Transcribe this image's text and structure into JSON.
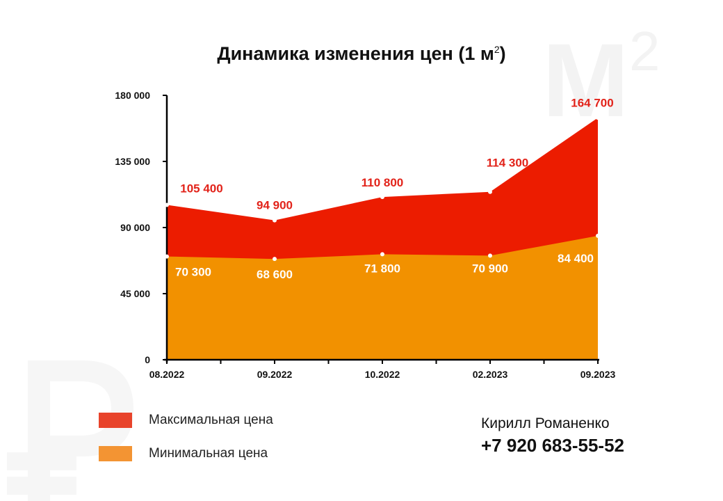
{
  "title": {
    "text": "Динамика изменения цен (1 м",
    "sup": "2"
  },
  "watermarks": {
    "m_letter": "М",
    "m_sup": "2",
    "ruble": "₽"
  },
  "legend": [
    {
      "label": "Максимальная цена",
      "color": "#e8432b"
    },
    {
      "label": "Минимальная цена",
      "color": "#f39433"
    }
  ],
  "contact": {
    "name": "Кирилл Романенко",
    "phone": "+7 920 683-55-52"
  },
  "chart_data": {
    "type": "area",
    "categories": [
      "08.2022",
      "09.2022",
      "10.2022",
      "02.2023",
      "09.2023"
    ],
    "series": [
      {
        "name": "Максимальная цена",
        "values": [
          105400,
          94900,
          110800,
          114300,
          164700
        ],
        "labels": [
          "105 400",
          "94 900",
          "110 800",
          "114 300",
          "164 700"
        ],
        "color": "#ec1c00",
        "label_color": "#e2231a"
      },
      {
        "name": "Минимальная цена",
        "values": [
          70300,
          68600,
          71800,
          70900,
          84400
        ],
        "labels": [
          "70 300",
          "68 600",
          "71 800",
          "70 900",
          "84 400"
        ],
        "color": "#f29100",
        "label_color": "#ffffff"
      }
    ],
    "ylim": [
      0,
      180000
    ],
    "yticks": [
      0,
      45000,
      90000,
      135000,
      180000
    ],
    "ytick_labels": [
      "0",
      "45 000",
      "90 000",
      "135 000",
      "180 000"
    ],
    "xlabel": "",
    "ylabel": "",
    "grid": false
  }
}
